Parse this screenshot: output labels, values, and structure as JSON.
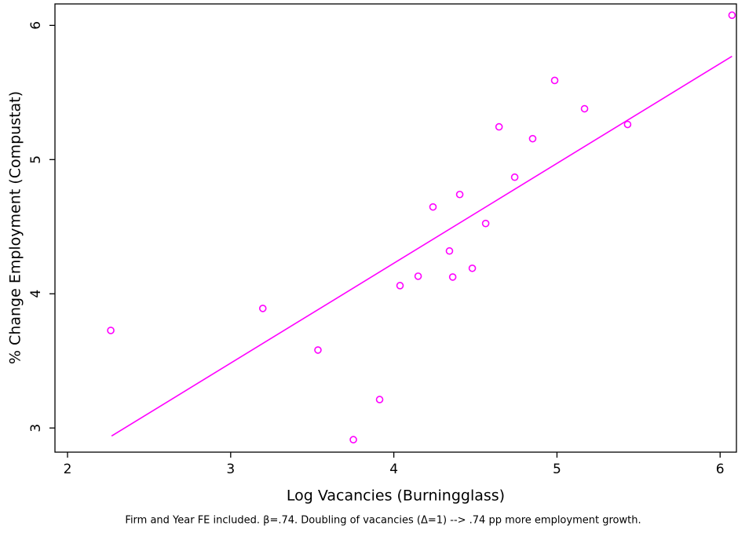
{
  "chart_data": {
    "type": "scatter",
    "xlabel": "Log Vacancies (Burningglass)",
    "ylabel": "% Change Employment (Compustat)",
    "note": "Firm and Year FE included. β=.74. Doubling of vacancies (Δ=1) --> .74 pp more employment growth.",
    "x": [
      2.265,
      3.197,
      3.535,
      3.752,
      3.913,
      4.038,
      4.149,
      4.24,
      4.341,
      4.361,
      4.404,
      4.481,
      4.563,
      4.645,
      4.741,
      4.851,
      4.986,
      5.169,
      5.433,
      6.073
    ],
    "values": [
      3.727,
      3.891,
      3.581,
      2.913,
      3.212,
      4.061,
      4.131,
      4.647,
      4.319,
      4.125,
      4.74,
      4.19,
      4.524,
      5.244,
      4.869,
      5.156,
      5.59,
      5.379,
      5.262,
      6.076
    ],
    "color": "#ff00ff",
    "fit": {
      "x": [
        2.27,
        6.073
      ],
      "y": [
        2.94,
        5.77
      ],
      "color": "#ff00ff"
    },
    "xlim": [
      1.923,
      6.1
    ],
    "ylim": [
      2.82,
      6.16
    ],
    "xticks": [
      2,
      3,
      4,
      5,
      6
    ],
    "yticks": [
      3,
      4,
      5,
      6
    ]
  }
}
